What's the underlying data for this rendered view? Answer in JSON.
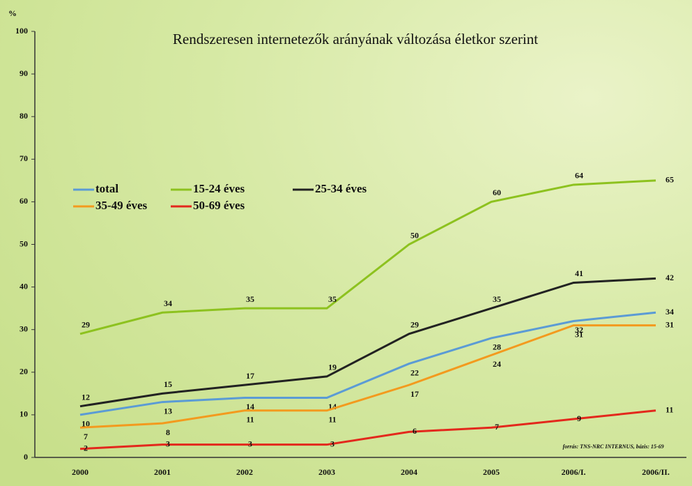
{
  "chart_data": {
    "type": "line",
    "title": "Rendszeresen internetezők arányának változása életkor szerint",
    "ylabel": "%",
    "note": "forrás: TNS-NRC INTERNUS, bázis: 15-69",
    "categories": [
      "2000",
      "2001",
      "2002",
      "2003",
      "2004",
      "2005",
      "2006/I.",
      "2006/II."
    ],
    "series": [
      {
        "name": "total",
        "color": "#5b9bd5",
        "values": [
          10,
          13,
          14,
          14,
          22,
          28,
          32,
          34
        ]
      },
      {
        "name": "15-24 éves",
        "color": "#8dc21f",
        "values": [
          29,
          34,
          35,
          35,
          50,
          60,
          64,
          65
        ]
      },
      {
        "name": "25-34 éves",
        "color": "#222222",
        "values": [
          12,
          15,
          17,
          19,
          29,
          35,
          41,
          42
        ]
      },
      {
        "name": "35-49 éves",
        "color": "#f39a1e",
        "values": [
          7,
          8,
          11,
          11,
          17,
          24,
          31,
          31
        ]
      },
      {
        "name": "50-69 éves",
        "color": "#e3281c",
        "values": [
          2,
          3,
          3,
          3,
          6,
          7,
          9,
          11
        ]
      }
    ],
    "ylim": [
      0,
      100
    ],
    "yticks": [
      0,
      10,
      20,
      30,
      40,
      50,
      60,
      70,
      80,
      90,
      100
    ],
    "grid": false,
    "legend": "upper left"
  }
}
